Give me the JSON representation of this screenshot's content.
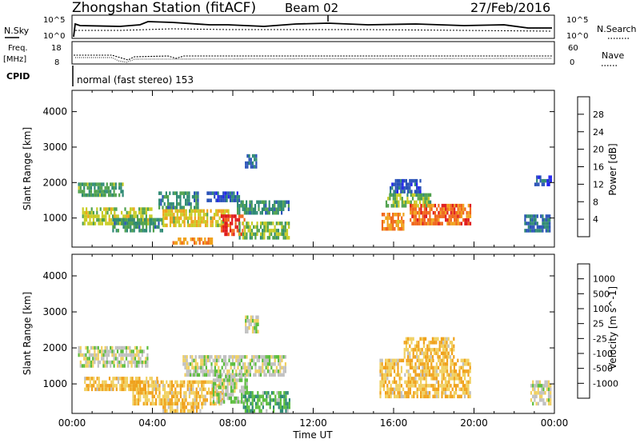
{
  "header": {
    "station": "Zhongshan Station (fitACF)",
    "beam": "Beam 02",
    "date": "27/Feb/2016"
  },
  "noise_panel": {
    "left_label": "N.Sky",
    "right_label": "N.Search",
    "left_ticks": [
      "10^5",
      "10^0"
    ],
    "right_ticks": [
      "10^5",
      "10^0"
    ]
  },
  "freq_panel": {
    "left_label_top": "Freq.",
    "left_label_bottom": "[MHz]",
    "right_label": "Nave",
    "left_ticks": [
      "18",
      "8"
    ],
    "right_ticks": [
      "60",
      "0"
    ]
  },
  "cpid": {
    "label": "CPID",
    "value": "normal (fast stereo) 153"
  },
  "axes": {
    "ylabel": "Slant Range [km]",
    "xlabel": "Time UT",
    "y_ticks": [
      "4000",
      "3000",
      "2000",
      "1000"
    ],
    "x_ticks": [
      "00:00",
      "04:00",
      "08:00",
      "12:00",
      "16:00",
      "20:00",
      "00:00"
    ]
  },
  "colors": {
    "power": [
      "#1f1ff0",
      "#2a52b8",
      "#2f8a74",
      "#4fa14d",
      "#c8cc24",
      "#f0a21c",
      "#f0661a",
      "#e01c1c"
    ],
    "velocity": [
      "#1f2bb0",
      "#2b6ab0",
      "#2f8a74",
      "#5bbd3d",
      "#c0c0c0",
      "#f0d060",
      "#f0a21c",
      "#f0661a",
      "#e01c1c"
    ]
  },
  "chart_data": [
    {
      "type": "heatmap",
      "title": "",
      "ylabel": "Slant Range [km]",
      "xlabel": "",
      "xlim": [
        0,
        24
      ],
      "ylim": [
        180,
        4600
      ],
      "colorbar": {
        "label": "Power [dB]",
        "ticks": [
          "28",
          "24",
          "20",
          "16",
          "12",
          "8",
          "4"
        ],
        "range": [
          0,
          30
        ]
      },
      "blobs": [
        {
          "t0": 0.3,
          "t1": 2.5,
          "r0": 1600,
          "r1": 2000,
          "v": 12
        },
        {
          "t0": 0.5,
          "t1": 4.0,
          "r0": 850,
          "r1": 1300,
          "v": 16
        },
        {
          "t0": 2.0,
          "t1": 4.5,
          "r0": 600,
          "r1": 1000,
          "v": 10
        },
        {
          "t0": 4.3,
          "t1": 6.3,
          "r0": 1300,
          "r1": 1750,
          "v": 10
        },
        {
          "t0": 4.5,
          "t1": 7.8,
          "r0": 800,
          "r1": 1250,
          "v": 18
        },
        {
          "t0": 5.0,
          "t1": 7.0,
          "r0": 250,
          "r1": 450,
          "v": 22
        },
        {
          "t0": 6.7,
          "t1": 8.3,
          "r0": 1500,
          "r1": 1750,
          "v": 6
        },
        {
          "t0": 7.4,
          "t1": 8.6,
          "r0": 500,
          "r1": 1100,
          "v": 27
        },
        {
          "t0": 8.3,
          "t1": 10.8,
          "r0": 400,
          "r1": 900,
          "v": 14
        },
        {
          "t0": 8.2,
          "t1": 10.8,
          "r0": 1100,
          "r1": 1500,
          "v": 10
        },
        {
          "t0": 8.6,
          "t1": 9.2,
          "r0": 2400,
          "r1": 2800,
          "v": 7
        },
        {
          "t0": 15.6,
          "t1": 17.8,
          "r0": 1300,
          "r1": 1700,
          "v": 14
        },
        {
          "t0": 15.4,
          "t1": 16.5,
          "r0": 700,
          "r1": 1150,
          "v": 22
        },
        {
          "t0": 16.8,
          "t1": 19.8,
          "r0": 800,
          "r1": 1400,
          "v": 24
        },
        {
          "t0": 15.8,
          "t1": 17.3,
          "r0": 1700,
          "r1": 2100,
          "v": 6
        },
        {
          "t0": 22.5,
          "t1": 23.8,
          "r0": 600,
          "r1": 1100,
          "v": 8
        },
        {
          "t0": 23.0,
          "t1": 23.8,
          "r0": 1900,
          "r1": 2200,
          "v": 6
        }
      ]
    },
    {
      "type": "heatmap",
      "title": "",
      "ylabel": "Slant Range [km]",
      "xlabel": "Time UT",
      "xlim": [
        0,
        24
      ],
      "ylim": [
        180,
        4600
      ],
      "colorbar": {
        "label": "Velocity [m s^-1]",
        "ticks": [
          "1000",
          "500",
          "100",
          "25",
          "-25",
          "-100",
          "-500",
          "-1000"
        ],
        "range": [
          -1000,
          1000
        ]
      },
      "blobs": [
        {
          "t0": 0.3,
          "t1": 3.8,
          "r0": 1500,
          "r1": 2050,
          "v": 0
        },
        {
          "t0": 0.6,
          "t1": 4.2,
          "r0": 850,
          "r1": 1200,
          "v": -300
        },
        {
          "t0": 3.0,
          "t1": 7.5,
          "r0": 500,
          "r1": 1100,
          "v": -300
        },
        {
          "t0": 5.5,
          "t1": 10.6,
          "r0": 1300,
          "r1": 1800,
          "v": 0
        },
        {
          "t0": 4.5,
          "t1": 6.5,
          "r0": 250,
          "r1": 500,
          "v": -300
        },
        {
          "t0": 7.0,
          "t1": 8.7,
          "r0": 500,
          "r1": 1250,
          "v": 80
        },
        {
          "t0": 8.5,
          "t1": 10.8,
          "r0": 300,
          "r1": 800,
          "v": 300
        },
        {
          "t0": 8.6,
          "t1": 9.3,
          "r0": 2500,
          "r1": 2900,
          "v": 0
        },
        {
          "t0": 15.3,
          "t1": 19.8,
          "r0": 700,
          "r1": 1700,
          "v": -300
        },
        {
          "t0": 16.5,
          "t1": 19.0,
          "r0": 1800,
          "r1": 2300,
          "v": -300
        },
        {
          "t0": 22.8,
          "t1": 23.8,
          "r0": 500,
          "r1": 1100,
          "v": -60
        }
      ]
    }
  ]
}
